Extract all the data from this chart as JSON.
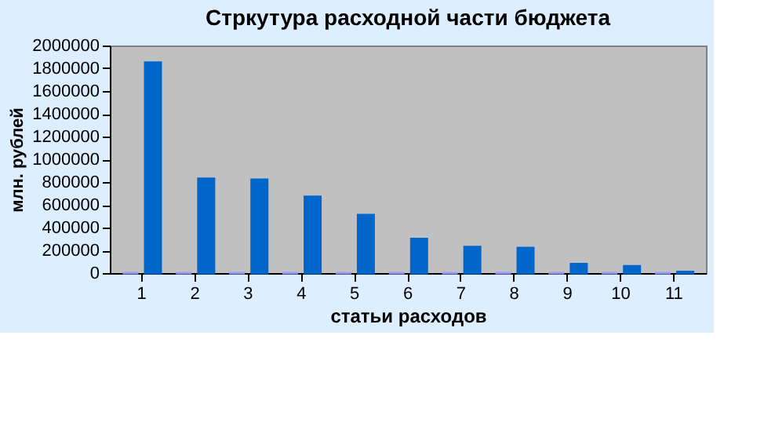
{
  "chart_data": {
    "type": "bar",
    "title": "Стркутура расходной части бюджета",
    "xlabel": "статьи расходов",
    "ylabel": "млн. рублей",
    "categories": [
      "1",
      "2",
      "3",
      "4",
      "5",
      "6",
      "7",
      "8",
      "9",
      "10",
      "11"
    ],
    "series": [
      {
        "color": "#9999ff",
        "values": [
          0,
          0,
          0,
          0,
          0,
          0,
          0,
          0,
          0,
          0,
          0
        ]
      },
      {
        "color": "#0066cc",
        "values": [
          1850000,
          830000,
          820000,
          670000,
          510000,
          300000,
          230000,
          220000,
          80000,
          60000,
          10000
        ]
      }
    ],
    "ylim": [
      0,
      2000000
    ],
    "yticks": [
      0,
      200000,
      400000,
      600000,
      800000,
      1000000,
      1200000,
      1400000,
      1600000,
      1800000,
      2000000
    ],
    "grid": false
  }
}
